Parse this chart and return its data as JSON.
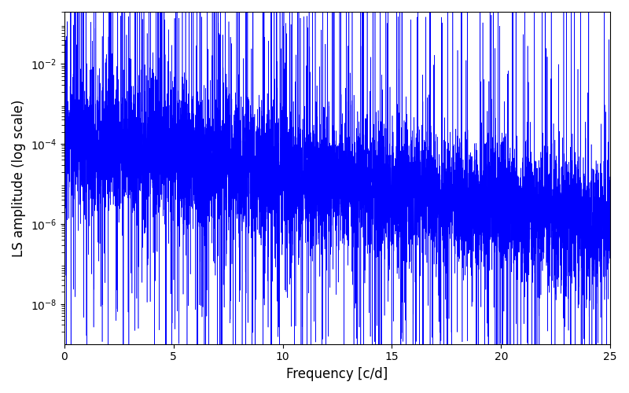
{
  "xlabel": "Frequency [c/d]",
  "ylabel": "LS amplitude (log scale)",
  "xlim": [
    0,
    25
  ],
  "line_color": "#0000ff",
  "line_width": 0.4,
  "background_color": "#ffffff",
  "freq_max": 25.0,
  "n_points": 8000,
  "seed": 12345,
  "figsize": [
    8.0,
    5.0
  ],
  "dpi": 100,
  "yticks": [
    1e-08,
    1e-06,
    0.0001,
    0.01
  ],
  "xticks": [
    0,
    5,
    10,
    15,
    20,
    25
  ],
  "ylim": [
    1e-09,
    0.2
  ]
}
